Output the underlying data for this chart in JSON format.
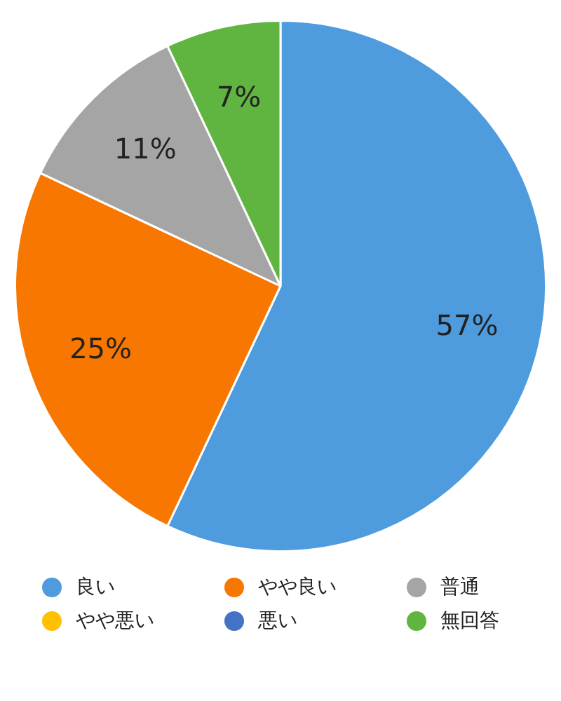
{
  "chart_data": {
    "type": "pie",
    "categories": [
      "良い",
      "やや良い",
      "普通",
      "やや悪い",
      "悪い",
      "無回答"
    ],
    "values": [
      57,
      25,
      11,
      0,
      0,
      7
    ],
    "colors": [
      "#4e9bde",
      "#f77700",
      "#a5a5a5",
      "#ffc000",
      "#4472c4",
      "#5fb53f"
    ],
    "value_labels": [
      "57%",
      "25%",
      "11%",
      null,
      null,
      "7%"
    ],
    "legend": "bottom"
  }
}
